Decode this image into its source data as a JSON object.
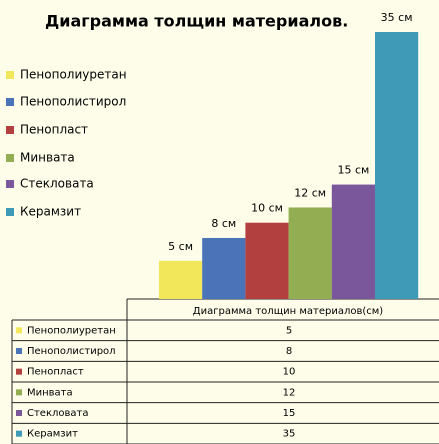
{
  "chart_data": {
    "type": "bar",
    "title": "Диаграмма толщин материалов.",
    "categories": [
      "Пенополиуретан",
      "Пенополистирол",
      "Пенопласт",
      "Минвата",
      "Стекловата",
      "Керамзит"
    ],
    "colors": [
      "#f2e65a",
      "#4a73b8",
      "#b2403e",
      "#93ad52",
      "#7a569a",
      "#3e9ab7"
    ],
    "series": [
      {
        "name": "Диаграмма толщин материалов(см)",
        "values": [
          5,
          8,
          10,
          12,
          15,
          35
        ],
        "value_labels": [
          "5 см",
          "8 см",
          "10 см",
          "12 см",
          "15 см",
          "35 см"
        ]
      }
    ],
    "legend": "left"
  }
}
